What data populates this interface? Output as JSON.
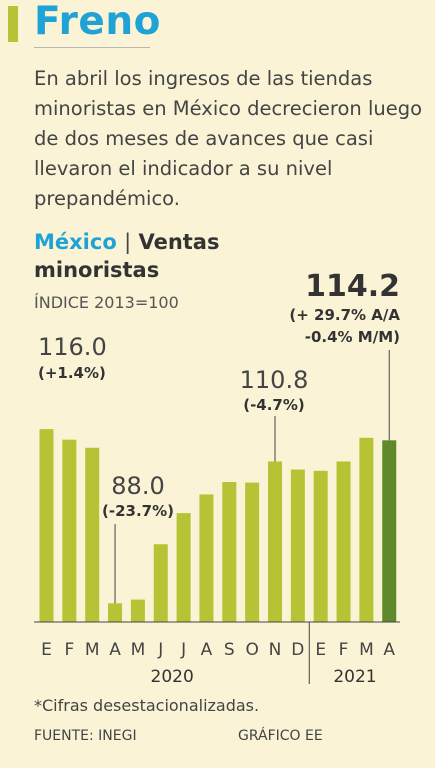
{
  "title": "Freno",
  "description": "En abril los ingresos de las tiendas minoristas en México decrecieron luego de dos meses de avances que casi llevaron el indicador a su nivel prepandémico.",
  "chart_title": {
    "country": "México",
    "separator": "|",
    "topic_line1": "Ventas",
    "topic_line2": "minoristas"
  },
  "index_label": "ÍNDICE 2013=100",
  "footnote": "*Cifras desestacionalizadas.",
  "source": "FUENTE: INEGI",
  "credit": "GRÁFICO EE",
  "colors": {
    "bar": "#b5c334",
    "bar_highlight": "#5e8a2c",
    "accent": "#1fa3d6"
  },
  "chart_data": {
    "type": "bar",
    "categories": [
      "E",
      "F",
      "M",
      "A",
      "M",
      "J",
      "J",
      "A",
      "S",
      "O",
      "N",
      "D",
      "E",
      "F",
      "M",
      "A"
    ],
    "years": [
      {
        "label": "2020",
        "first": 0,
        "last": 11
      },
      {
        "label": "2021",
        "first": 12,
        "last": 15
      }
    ],
    "values": [
      116.0,
      114.3,
      113.0,
      88.0,
      88.6,
      97.5,
      102.5,
      105.5,
      107.5,
      107.4,
      110.8,
      109.5,
      109.3,
      110.8,
      114.6,
      114.2
    ],
    "ylim": [
      85,
      121
    ],
    "highlight_index": 15,
    "annotations": [
      {
        "index": 0,
        "value": "116.0",
        "change": "(+1.4%)"
      },
      {
        "index": 3,
        "value": "88.0",
        "change": "(-23.7%)"
      },
      {
        "index": 10,
        "value": "110.8",
        "change": "(-4.7%)"
      },
      {
        "index": 15,
        "value": "114.2",
        "change1": "(+ 29.7% A/A",
        "change2": "-0.4% M/M)"
      }
    ]
  }
}
